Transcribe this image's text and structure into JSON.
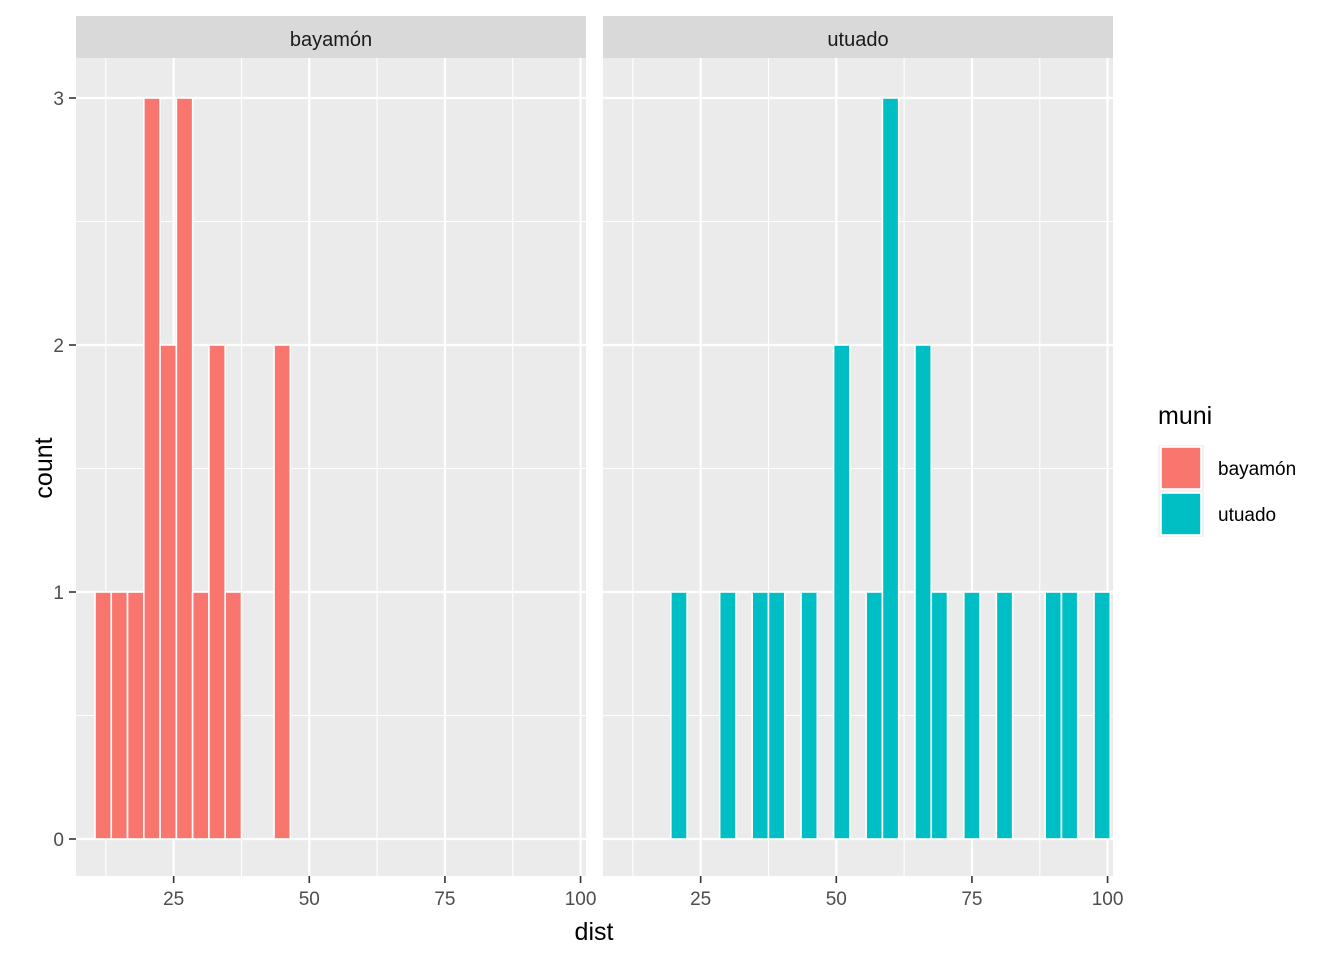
{
  "chart_data": {
    "type": "bar",
    "subtype": "faceted-histogram",
    "xlabel": "dist",
    "ylabel": "count",
    "xlim": [
      7,
      101
    ],
    "ylim": [
      0,
      3
    ],
    "x_ticks": [
      25,
      50,
      75,
      100
    ],
    "y_ticks": [
      0,
      1,
      2,
      3
    ],
    "bin_width": 3,
    "grid": true,
    "legend": {
      "title": "muni",
      "position": "right",
      "entries": [
        {
          "label": "bayamón",
          "color": "#F8766D"
        },
        {
          "label": "utuado",
          "color": "#00BFC4"
        }
      ]
    },
    "facets": [
      {
        "label": "bayamón",
        "color": "#F8766D",
        "bins": [
          {
            "x": 12,
            "count": 1
          },
          {
            "x": 15,
            "count": 1
          },
          {
            "x": 18,
            "count": 1
          },
          {
            "x": 21,
            "count": 3
          },
          {
            "x": 24,
            "count": 2
          },
          {
            "x": 27,
            "count": 3
          },
          {
            "x": 30,
            "count": 1
          },
          {
            "x": 33,
            "count": 2
          },
          {
            "x": 36,
            "count": 1
          },
          {
            "x": 45,
            "count": 2
          }
        ]
      },
      {
        "label": "utuado",
        "color": "#00BFC4",
        "bins": [
          {
            "x": 21,
            "count": 1
          },
          {
            "x": 30,
            "count": 1
          },
          {
            "x": 36,
            "count": 1
          },
          {
            "x": 39,
            "count": 1
          },
          {
            "x": 45,
            "count": 1
          },
          {
            "x": 51,
            "count": 2
          },
          {
            "x": 57,
            "count": 1
          },
          {
            "x": 60,
            "count": 3
          },
          {
            "x": 66,
            "count": 2
          },
          {
            "x": 69,
            "count": 1
          },
          {
            "x": 75,
            "count": 1
          },
          {
            "x": 81,
            "count": 1
          },
          {
            "x": 90,
            "count": 1
          },
          {
            "x": 93,
            "count": 1
          },
          {
            "x": 99,
            "count": 1
          }
        ]
      }
    ]
  }
}
